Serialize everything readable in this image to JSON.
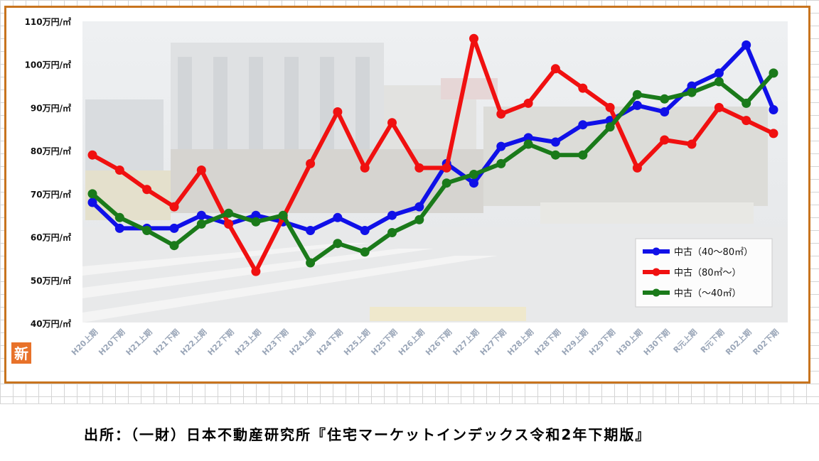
{
  "source_note": "出所：（一財）日本不動産研究所『住宅マーケットインデックス令和2年下期版』",
  "logo_text": "新",
  "colors": {
    "frame": "#c8741e",
    "mid": "#1010e8",
    "large": "#f01010",
    "small": "#1a7a1a"
  },
  "chart_data": {
    "type": "line",
    "title": "",
    "xlabel": "",
    "ylabel": "",
    "ylim": [
      40,
      110
    ],
    "ytick_values": [
      40,
      50,
      60,
      70,
      80,
      90,
      100,
      110
    ],
    "ytick_labels": [
      "40万円/㎡",
      "50万円/㎡",
      "60万円/㎡",
      "70万円/㎡",
      "80万円/㎡",
      "90万円/㎡",
      "100万円/㎡",
      "110万円/㎡"
    ],
    "categories": [
      "H20上期",
      "H20下期",
      "H21上期",
      "H21下期",
      "H22上期",
      "H22下期",
      "H23上期",
      "H23下期",
      "H24上期",
      "H24下期",
      "H25上期",
      "H25下期",
      "H26上期",
      "H26下期",
      "H27上期",
      "H27下期",
      "H28上期",
      "H28下期",
      "H29上期",
      "H29下期",
      "H30上期",
      "H30下期",
      "R元上期",
      "R元下期",
      "R02上期",
      "R02下期"
    ],
    "legend_position": "bottom-right",
    "grid": false,
    "series": [
      {
        "name": "中古（40～80㎡）",
        "color": "#1010e8",
        "values": [
          68,
          62,
          62,
          62,
          65,
          63,
          65,
          63.5,
          61.5,
          64.5,
          61.5,
          65,
          67,
          77,
          72.5,
          81,
          83,
          82,
          86,
          87,
          90.5,
          89,
          95,
          98,
          104.5,
          89.5
        ]
      },
      {
        "name": "中古（80㎡～）",
        "color": "#f01010",
        "values": [
          79,
          75.5,
          71,
          67,
          75.5,
          63,
          52,
          64.5,
          77,
          89,
          76,
          86.5,
          76,
          76,
          106,
          88.5,
          91,
          99,
          94.5,
          90,
          76,
          82.5,
          81.5,
          90,
          87,
          84
        ]
      },
      {
        "name": "中古（～40㎡）",
        "color": "#1a7a1a",
        "values": [
          70,
          64.5,
          61.5,
          58,
          63,
          65.5,
          63.5,
          65,
          54,
          58.5,
          56.5,
          61,
          64,
          72.5,
          74.5,
          77,
          81.5,
          79,
          79,
          85.5,
          93,
          92,
          93.5,
          96,
          91,
          98
        ]
      }
    ]
  }
}
